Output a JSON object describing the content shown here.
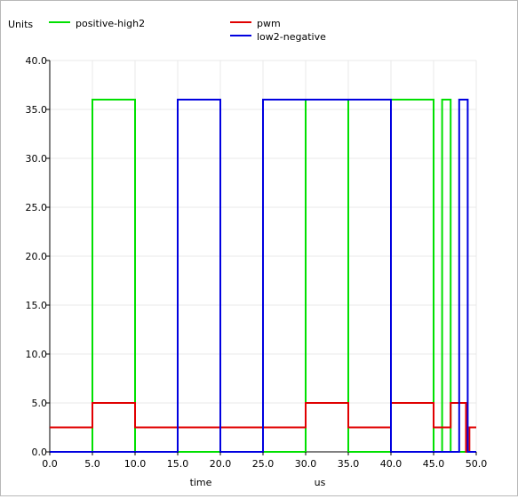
{
  "chart_data": {
    "type": "line",
    "units_label": "Units",
    "xlabel": "time",
    "xunit": "us",
    "xlim": [
      0,
      50
    ],
    "ylim": [
      0,
      40
    ],
    "xticks": [
      "0.0",
      "5.0",
      "10.0",
      "15.0",
      "20.0",
      "25.0",
      "30.0",
      "35.0",
      "40.0",
      "45.0",
      "50.0"
    ],
    "yticks": [
      "0.0",
      "5.0",
      "10.0",
      "15.0",
      "20.0",
      "25.0",
      "30.0",
      "35.0",
      "40.0"
    ],
    "grid": true,
    "legend_position": "top",
    "series": [
      {
        "name": "positive-high2",
        "color": "#00e000",
        "x": [
          0,
          5,
          5,
          10,
          10,
          30,
          30,
          35,
          35,
          40,
          40,
          45,
          45,
          46,
          46,
          47,
          47,
          50
        ],
        "y": [
          0,
          0,
          36,
          36,
          0,
          0,
          36,
          36,
          0,
          0,
          36,
          36,
          0,
          0,
          36,
          36,
          0,
          0
        ]
      },
      {
        "name": "pwm",
        "color": "#e00000",
        "x": [
          0,
          5,
          5,
          10,
          10,
          25,
          25,
          30,
          30,
          35,
          35,
          40,
          40,
          45,
          45,
          47,
          47,
          48.8,
          48.8,
          49.2,
          49.2,
          50
        ],
        "y": [
          2.5,
          2.5,
          5,
          5,
          2.5,
          2.5,
          2.5,
          2.5,
          5,
          5,
          2.5,
          2.5,
          5,
          5,
          2.5,
          2.5,
          5,
          5,
          0,
          0,
          2.5,
          2.5
        ]
      },
      {
        "name": "low2-negative",
        "color": "#0000e0",
        "x": [
          0,
          15,
          15,
          20,
          20,
          25,
          25,
          30,
          30,
          35,
          35,
          40,
          40,
          48,
          48,
          49,
          49,
          50
        ],
        "y": [
          0,
          0,
          36,
          36,
          0,
          0,
          36,
          36,
          36,
          36,
          36,
          36,
          0,
          0,
          36,
          36,
          0,
          0
        ]
      }
    ]
  }
}
